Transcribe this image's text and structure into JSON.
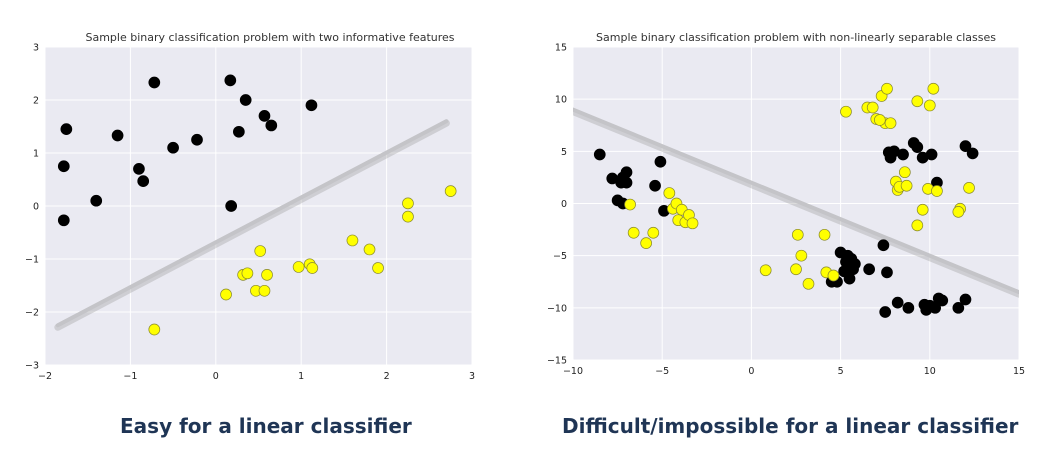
{
  "chart_data": [
    {
      "type": "scatter",
      "title": "Sample binary classification problem with two informative features",
      "xlim": [
        -2,
        3
      ],
      "ylim": [
        -3,
        3
      ],
      "xticks": [
        -2,
        -1,
        0,
        1,
        2,
        3
      ],
      "yticks": [
        -3,
        -2,
        -1,
        0,
        1,
        2,
        3
      ],
      "grid": true,
      "background": "#eaeaf2",
      "decision_line": [
        [
          -1.85,
          -2.25
        ],
        [
          2.7,
          1.6
        ]
      ],
      "series": [
        {
          "color": "#000000",
          "points": [
            [
              -1.75,
              1.45
            ],
            [
              -1.78,
              0.75
            ],
            [
              -1.78,
              -0.27
            ],
            [
              -1.4,
              0.1
            ],
            [
              -1.15,
              1.33
            ],
            [
              -0.9,
              0.7
            ],
            [
              -0.85,
              0.47
            ],
            [
              -0.72,
              2.33
            ],
            [
              -0.5,
              1.1
            ],
            [
              -0.22,
              1.25
            ],
            [
              0.17,
              2.37
            ],
            [
              0.27,
              1.4
            ],
            [
              0.35,
              2.0
            ],
            [
              0.57,
              1.7
            ],
            [
              0.65,
              1.52
            ],
            [
              1.12,
              1.9
            ],
            [
              0.18,
              0.0
            ]
          ]
        },
        {
          "color": "#ffff00",
          "points": [
            [
              -0.72,
              -2.33
            ],
            [
              0.12,
              -1.67
            ],
            [
              0.32,
              -1.3
            ],
            [
              0.37,
              -1.27
            ],
            [
              0.47,
              -1.6
            ],
            [
              0.52,
              -0.85
            ],
            [
              0.57,
              -1.6
            ],
            [
              0.6,
              -1.3
            ],
            [
              0.97,
              -1.15
            ],
            [
              1.1,
              -1.1
            ],
            [
              1.13,
              -1.17
            ],
            [
              1.6,
              -0.65
            ],
            [
              1.8,
              -0.82
            ],
            [
              1.9,
              -1.17
            ],
            [
              2.25,
              0.05
            ],
            [
              2.25,
              -0.2
            ],
            [
              2.75,
              0.28
            ]
          ]
        }
      ]
    },
    {
      "type": "scatter",
      "title": "Sample binary classification problem with non-linearly separable classes",
      "xlim": [
        -10,
        15
      ],
      "ylim": [
        -15,
        15
      ],
      "xticks": [
        -10,
        -5,
        0,
        5,
        10,
        15
      ],
      "yticks": [
        -15,
        -10,
        -5,
        0,
        5,
        10,
        15
      ],
      "grid": true,
      "background": "#eaeaf2",
      "decision_line": [
        [
          -10,
          9.0
        ],
        [
          15,
          -8.5
        ]
      ],
      "series": [
        {
          "color": "#000000",
          "points": [
            [
              -8.5,
              4.7
            ],
            [
              -7.8,
              2.4
            ],
            [
              -7.5,
              0.3
            ],
            [
              -7.3,
              2.0
            ],
            [
              -7.2,
              2.5
            ],
            [
              -7.0,
              3.0
            ],
            [
              -7.0,
              2.0
            ],
            [
              -7.2,
              0.0
            ],
            [
              -5.4,
              1.7
            ],
            [
              -5.1,
              4.0
            ],
            [
              -4.9,
              -0.7
            ],
            [
              4.5,
              -7.5
            ],
            [
              4.8,
              -7.5
            ],
            [
              5.0,
              -4.7
            ],
            [
              5.2,
              -6.5
            ],
            [
              5.3,
              -5.6
            ],
            [
              5.4,
              -5.0
            ],
            [
              5.6,
              -5.3
            ],
            [
              5.7,
              -6.3
            ],
            [
              5.8,
              -5.8
            ],
            [
              5.5,
              -7.2
            ],
            [
              6.6,
              -6.3
            ],
            [
              7.4,
              -4.0
            ],
            [
              7.6,
              -6.6
            ],
            [
              7.5,
              -10.4
            ],
            [
              7.7,
              4.9
            ],
            [
              7.8,
              4.4
            ],
            [
              8.0,
              5.0
            ],
            [
              8.5,
              4.7
            ],
            [
              8.2,
              -9.5
            ],
            [
              8.8,
              -10.0
            ],
            [
              9.1,
              5.8
            ],
            [
              9.3,
              5.4
            ],
            [
              9.6,
              4.4
            ],
            [
              9.7,
              -9.7
            ],
            [
              9.8,
              -10.2
            ],
            [
              10.0,
              -9.8
            ],
            [
              10.1,
              4.7
            ],
            [
              10.4,
              2.0
            ],
            [
              10.3,
              -10.0
            ],
            [
              10.5,
              -9.1
            ],
            [
              10.7,
              -9.3
            ],
            [
              11.6,
              -10.0
            ],
            [
              12.0,
              5.5
            ],
            [
              12.4,
              4.8
            ],
            [
              12.0,
              -9.2
            ]
          ]
        },
        {
          "color": "#ffff00",
          "points": [
            [
              -6.8,
              -0.1
            ],
            [
              -6.6,
              -2.8
            ],
            [
              -5.9,
              -3.8
            ],
            [
              -5.5,
              -2.8
            ],
            [
              -4.6,
              1.0
            ],
            [
              -4.4,
              -0.5
            ],
            [
              -4.2,
              0.0
            ],
            [
              -4.1,
              -1.6
            ],
            [
              -3.9,
              -0.6
            ],
            [
              -3.7,
              -1.8
            ],
            [
              -3.5,
              -1.1
            ],
            [
              -3.3,
              -1.9
            ],
            [
              0.8,
              -6.4
            ],
            [
              2.5,
              -6.3
            ],
            [
              2.6,
              -3.0
            ],
            [
              2.8,
              -5.0
            ],
            [
              3.2,
              -7.7
            ],
            [
              4.1,
              -3.0
            ],
            [
              4.2,
              -6.6
            ],
            [
              4.6,
              -6.9
            ],
            [
              5.3,
              8.8
            ],
            [
              6.5,
              9.2
            ],
            [
              6.8,
              9.2
            ],
            [
              7.0,
              8.1
            ],
            [
              7.3,
              10.3
            ],
            [
              7.5,
              7.7
            ],
            [
              7.6,
              11.0
            ],
            [
              7.2,
              8.0
            ],
            [
              7.8,
              7.7
            ],
            [
              8.1,
              2.1
            ],
            [
              8.2,
              1.3
            ],
            [
              8.3,
              1.6
            ],
            [
              8.6,
              3.0
            ],
            [
              8.7,
              1.7
            ],
            [
              9.3,
              9.8
            ],
            [
              9.3,
              -2.1
            ],
            [
              9.6,
              -0.6
            ],
            [
              9.9,
              1.4
            ],
            [
              10.0,
              9.4
            ],
            [
              10.2,
              11.0
            ],
            [
              10.4,
              1.2
            ],
            [
              11.7,
              -0.5
            ],
            [
              11.6,
              -0.8
            ],
            [
              12.2,
              1.5
            ]
          ]
        }
      ]
    }
  ],
  "captions": {
    "left": "Easy for a linear classifier",
    "right": "Difficult/impossible for a linear classifier"
  }
}
